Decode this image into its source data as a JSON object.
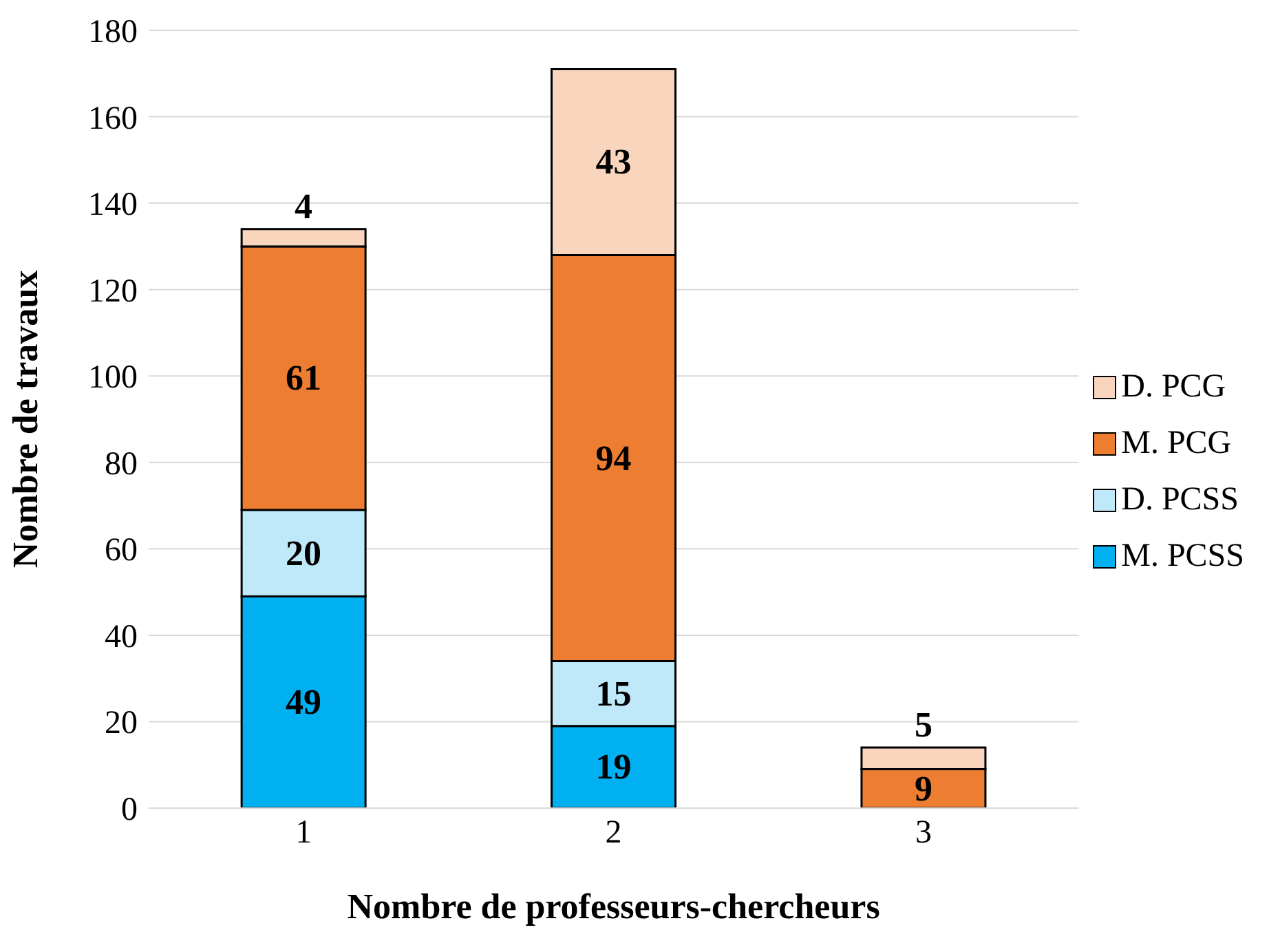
{
  "chart_data": {
    "type": "bar",
    "stacked": true,
    "xlabel": "Nombre de professeurs-chercheurs",
    "ylabel": "Nombre de travaux",
    "categories": [
      "1",
      "2",
      "3"
    ],
    "series": [
      {
        "name": "M. PCSS",
        "color": "#00b0f0",
        "values": [
          49,
          19,
          null
        ]
      },
      {
        "name": "D. PCSS",
        "color": "#bfe9f9",
        "values": [
          20,
          15,
          null
        ]
      },
      {
        "name": "M. PCG",
        "color": "#ed7d31",
        "values": [
          61,
          94,
          9
        ]
      },
      {
        "name": "D. PCG",
        "color": "#f9d5bd",
        "values": [
          4,
          43,
          5
        ]
      }
    ],
    "ylim": [
      0,
      180
    ],
    "yticks": [
      0,
      20,
      40,
      60,
      80,
      100,
      120,
      140,
      160,
      180
    ],
    "grid": "y",
    "legend": "right",
    "data_labels": true
  }
}
